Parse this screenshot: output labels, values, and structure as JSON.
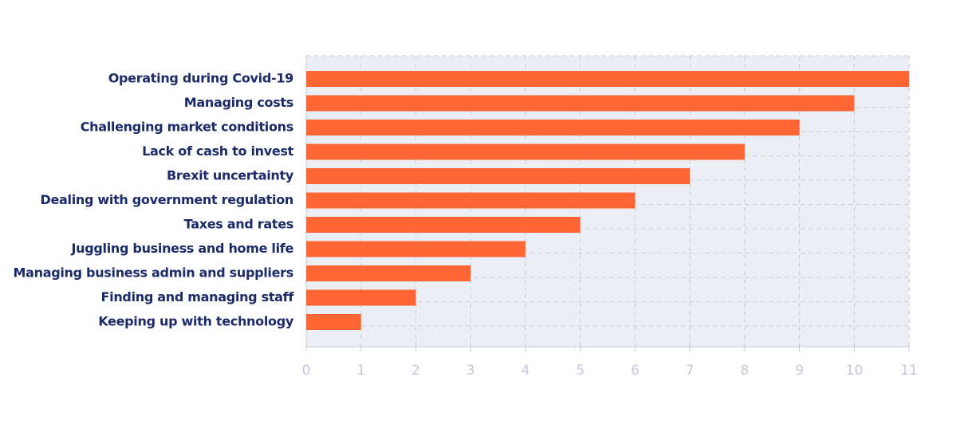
{
  "chart_data": {
    "type": "bar",
    "orientation": "horizontal",
    "categories": [
      "Operating during Covid-19",
      "Managing costs",
      "Challenging market conditions",
      "Lack of cash to invest",
      "Brexit uncertainty",
      "Dealing with government regulation",
      "Taxes and rates",
      "Juggling business and home life",
      "Managing business admin and suppliers",
      "Finding and managing staff",
      "Keeping up with technology"
    ],
    "values": [
      11,
      10,
      9,
      8,
      7,
      6,
      5,
      4,
      3,
      2,
      1
    ],
    "color": "#ff6633",
    "xlim": [
      0,
      11
    ],
    "xticks": [
      0,
      1,
      2,
      3,
      4,
      5,
      6,
      7,
      8,
      9,
      10,
      11
    ],
    "grid": true
  }
}
